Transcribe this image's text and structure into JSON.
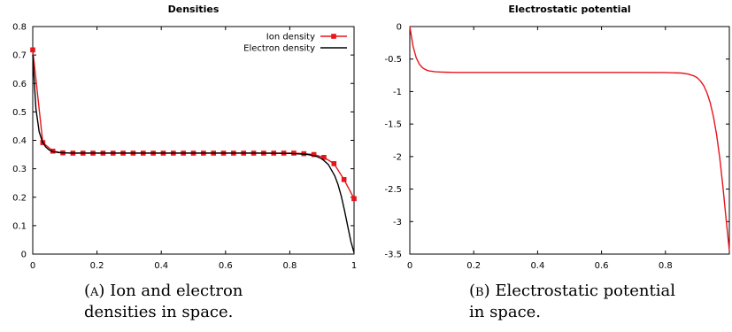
{
  "chart_data": [
    {
      "type": "line",
      "title": "Densities",
      "xlabel": "",
      "ylabel": "",
      "xlim": [
        0,
        1
      ],
      "ylim": [
        0,
        0.8
      ],
      "xticks": [
        "0",
        "0.2",
        "0.4",
        "0.6",
        "0.8",
        "1"
      ],
      "yticks": [
        "0",
        "0.1",
        "0.2",
        "0.3",
        "0.4",
        "0.5",
        "0.6",
        "0.7",
        "0.8"
      ],
      "grid": false,
      "legend": "top-right",
      "series": [
        {
          "name": "Ion density",
          "color": "#e8141c",
          "marker": "square",
          "x": [
            0.0,
            0.03125,
            0.0625,
            0.09375,
            0.125,
            0.15625,
            0.1875,
            0.21875,
            0.25,
            0.28125,
            0.3125,
            0.34375,
            0.375,
            0.40625,
            0.4375,
            0.46875,
            0.5,
            0.53125,
            0.5625,
            0.59375,
            0.625,
            0.65625,
            0.6875,
            0.71875,
            0.75,
            0.78125,
            0.8125,
            0.84375,
            0.875,
            0.90625,
            0.9375,
            0.96875,
            1.0
          ],
          "y": [
            0.718,
            0.392,
            0.362,
            0.356,
            0.355,
            0.355,
            0.355,
            0.355,
            0.355,
            0.355,
            0.355,
            0.355,
            0.355,
            0.355,
            0.355,
            0.355,
            0.355,
            0.355,
            0.355,
            0.355,
            0.355,
            0.355,
            0.355,
            0.355,
            0.355,
            0.355,
            0.355,
            0.353,
            0.35,
            0.34,
            0.318,
            0.262,
            0.195
          ]
        },
        {
          "name": "Electron density",
          "color": "#000000",
          "marker": "none",
          "x": [
            0.0,
            0.005,
            0.01,
            0.02,
            0.03,
            0.04,
            0.05,
            0.06,
            0.08,
            0.1,
            0.12,
            0.15,
            0.2,
            0.3,
            0.4,
            0.5,
            0.6,
            0.7,
            0.8,
            0.85,
            0.88,
            0.9,
            0.92,
            0.94,
            0.95,
            0.96,
            0.97,
            0.98,
            0.99,
            1.0
          ],
          "y": [
            0.7,
            0.6,
            0.51,
            0.43,
            0.395,
            0.377,
            0.367,
            0.361,
            0.357,
            0.356,
            0.355,
            0.355,
            0.355,
            0.355,
            0.355,
            0.355,
            0.355,
            0.355,
            0.354,
            0.351,
            0.345,
            0.335,
            0.315,
            0.275,
            0.245,
            0.205,
            0.155,
            0.1,
            0.045,
            0.005
          ]
        }
      ]
    },
    {
      "type": "line",
      "title": "Electrostatic potential",
      "xlabel": "",
      "ylabel": "",
      "xlim": [
        0,
        1
      ],
      "ylim": [
        -3.5,
        0
      ],
      "xticks": [
        "0",
        "0.2",
        "0.4",
        "0.6",
        "0.8"
      ],
      "yticks": [
        "0",
        "-0.5",
        "-1",
        "-1.5",
        "-2",
        "-2.5",
        "-3",
        "-3.5"
      ],
      "grid": false,
      "legend": "none",
      "series": [
        {
          "color": "#e8141c",
          "marker": "none",
          "x": [
            0.0,
            0.005,
            0.01,
            0.02,
            0.03,
            0.04,
            0.05,
            0.06,
            0.08,
            0.1,
            0.12,
            0.15,
            0.2,
            0.3,
            0.4,
            0.5,
            0.6,
            0.7,
            0.8,
            0.85,
            0.87,
            0.89,
            0.9,
            0.91,
            0.92,
            0.93,
            0.94,
            0.95,
            0.96,
            0.97,
            0.98,
            0.99,
            1.0
          ],
          "y": [
            0.0,
            -0.15,
            -0.3,
            -0.48,
            -0.58,
            -0.635,
            -0.665,
            -0.682,
            -0.695,
            -0.7,
            -0.703,
            -0.705,
            -0.705,
            -0.705,
            -0.705,
            -0.705,
            -0.705,
            -0.705,
            -0.707,
            -0.715,
            -0.73,
            -0.76,
            -0.79,
            -0.84,
            -0.91,
            -1.02,
            -1.17,
            -1.38,
            -1.66,
            -2.02,
            -2.47,
            -2.97,
            -3.45
          ]
        }
      ]
    }
  ],
  "captions": {
    "a": {
      "tag": "(a)",
      "text": " Ion and electron densities in space."
    },
    "b": {
      "tag": "(b)",
      "text": " Electrostatic potential in space."
    }
  }
}
